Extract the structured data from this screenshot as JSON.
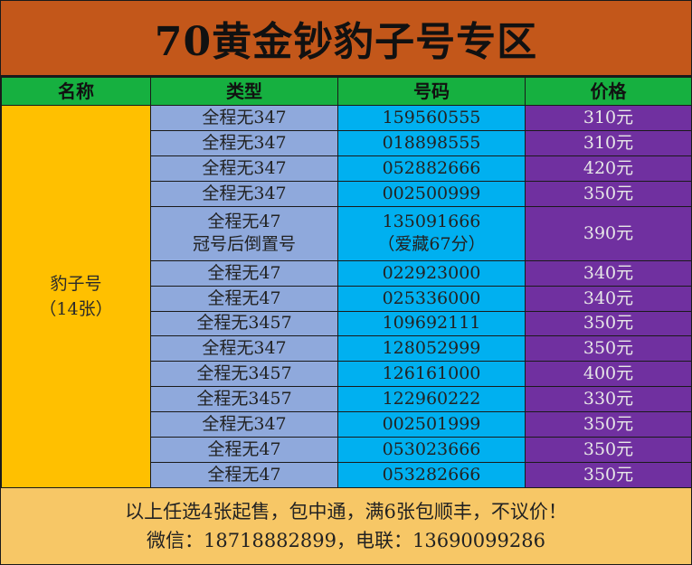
{
  "title": "70黄金钞豹子号专区",
  "headers": {
    "name": "名称",
    "type": "类型",
    "number": "号码",
    "price": "价格"
  },
  "group": {
    "name": "豹子号",
    "count": "（14张）"
  },
  "rows": [
    {
      "type": "全程无347",
      "number": "159560555",
      "price": "310元"
    },
    {
      "type": "全程无347",
      "number": "018898555",
      "price": "310元"
    },
    {
      "type": "全程无347",
      "number": "052882666",
      "price": "420元"
    },
    {
      "type": "全程无347",
      "number": "002500999",
      "price": "350元"
    },
    {
      "type": "全程无47",
      "type_note": "冠号后倒置号",
      "number": "135091666",
      "number_note": "（爱藏67分）",
      "price": "390元"
    },
    {
      "type": "全程无47",
      "number": "022923000",
      "price": "340元"
    },
    {
      "type": "全程无47",
      "number": "025336000",
      "price": "340元"
    },
    {
      "type": "全程无3457",
      "number": "109692111",
      "price": "350元"
    },
    {
      "type": "全程无347",
      "number": "128052999",
      "price": "350元"
    },
    {
      "type": "全程无3457",
      "number": "126161000",
      "price": "400元"
    },
    {
      "type": "全程无3457",
      "number": "122960222",
      "price": "330元"
    },
    {
      "type": "全程无347",
      "number": "002501999",
      "price": "350元"
    },
    {
      "type": "全程无47",
      "number": "053023666",
      "price": "350元"
    },
    {
      "type": "全程无47",
      "number": "053282666",
      "price": "350元"
    }
  ],
  "footer": {
    "line1": "以上任选4张起售，包中通，满6张包顺丰，不议价！",
    "line2": "微信：18718882899，电联：13690099286"
  },
  "colors": {
    "title_bg": "#c3571a",
    "header_bg": "#16b040",
    "name_bg": "#ffc000",
    "type_bg": "#8fa9dc",
    "number_bg": "#00b0f0",
    "price_bg": "#7030a0",
    "footer_bg": "#f7c766"
  }
}
